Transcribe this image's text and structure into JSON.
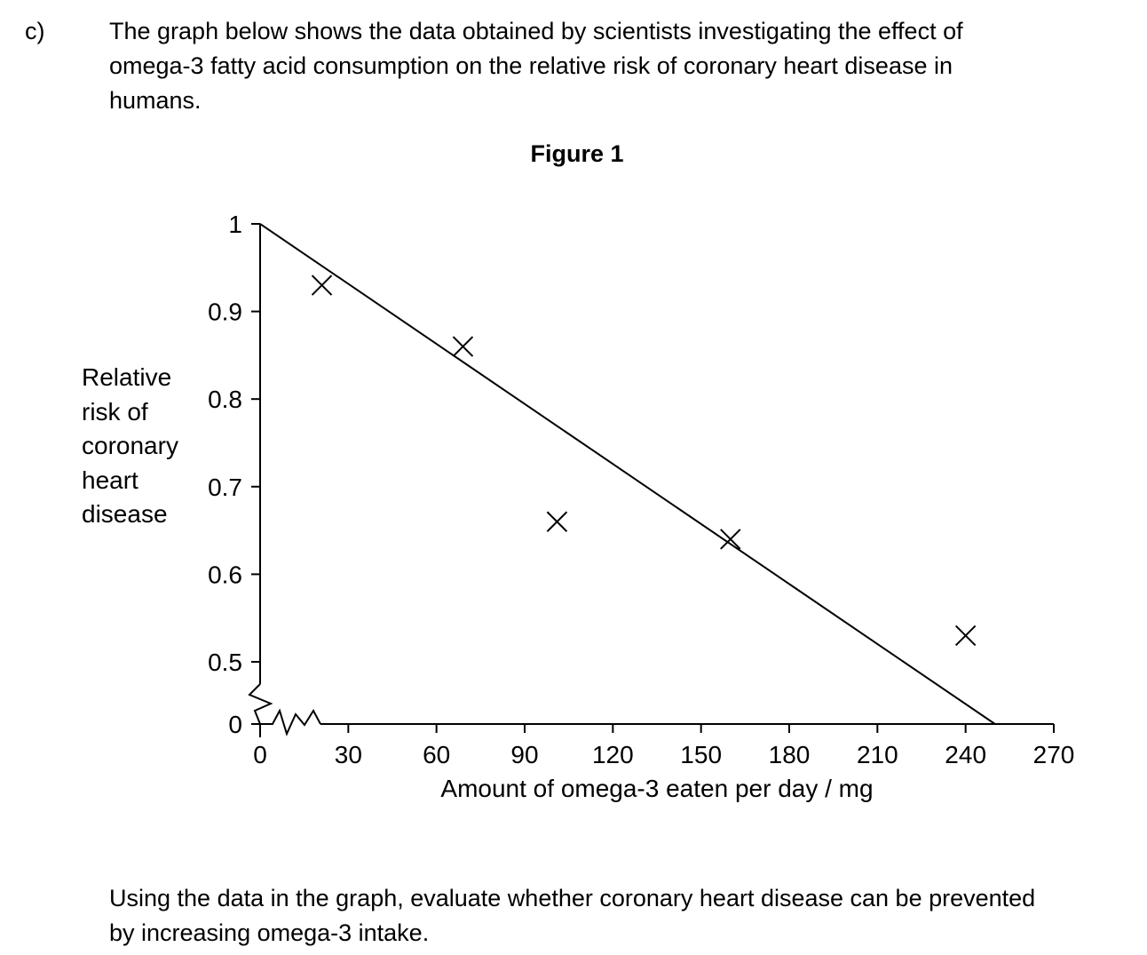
{
  "question_label": "c)",
  "intro_lines": [
    "The graph below shows the data obtained by scientists investigating the effect of",
    "omega-3 fatty acid consumption on the relative risk of coronary heart disease in",
    "humans."
  ],
  "question_lines": [
    "Using the data in the graph, evaluate whether coronary heart disease can be prevented",
    "by increasing omega-3 intake."
  ],
  "chart_data": {
    "type": "scatter",
    "title": "Figure 1",
    "xlabel": "Amount of omega-3 eaten per day / mg",
    "ylabel_lines": [
      "Relative",
      "risk of",
      "coronary",
      "heart",
      "disease"
    ],
    "x_ticks": [
      0,
      30,
      60,
      90,
      120,
      150,
      180,
      210,
      240,
      270
    ],
    "x_tick_labels": [
      "0",
      "30",
      "60",
      "90",
      "120",
      "150",
      "180",
      "210",
      "240",
      "270"
    ],
    "y_ticks": [
      0,
      0.5,
      0.6,
      0.7,
      0.8,
      0.9,
      1
    ],
    "y_tick_labels": [
      "0",
      "0.5",
      "0.6",
      "0.7",
      "0.8",
      "0.9",
      "1"
    ],
    "xlim": [
      0,
      270
    ],
    "ylim": [
      0.45,
      1
    ],
    "y_axis_break": true,
    "x_axis_break": true,
    "marker": "x",
    "points": [
      {
        "x": 21,
        "y": 0.93
      },
      {
        "x": 69,
        "y": 0.86
      },
      {
        "x": 101,
        "y": 0.66
      },
      {
        "x": 160,
        "y": 0.64
      },
      {
        "x": 240,
        "y": 0.53
      }
    ],
    "line_of_best_fit": {
      "from": {
        "x": 0,
        "y": 1.0
      },
      "to": {
        "x": 250,
        "y": 0.45
      }
    },
    "grid": false
  }
}
